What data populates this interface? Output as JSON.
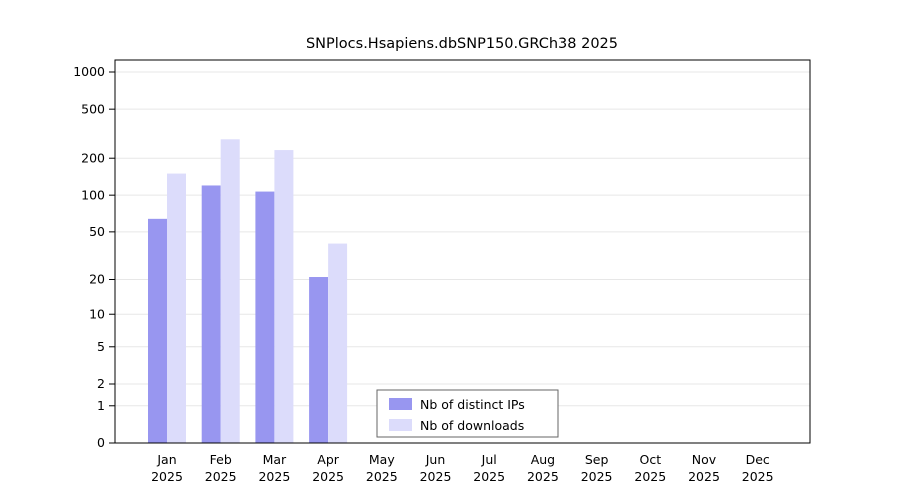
{
  "chart_data": {
    "type": "bar",
    "title": "SNPlocs.Hsapiens.dbSNP150.GRCh38 2025",
    "categories": [
      "Jan 2025",
      "Feb 2025",
      "Mar 2025",
      "Apr 2025",
      "May 2025",
      "Jun 2025",
      "Jul 2025",
      "Aug 2025",
      "Sep 2025",
      "Oct 2025",
      "Nov 2025",
      "Dec 2025"
    ],
    "series": [
      {
        "name": "Nb of distinct IPs",
        "color": "#9896f0",
        "values": [
          64,
          120,
          107,
          21,
          0,
          0,
          0,
          0,
          0,
          0,
          0,
          0
        ]
      },
      {
        "name": "Nb of downloads",
        "color": "#dcdcfb",
        "values": [
          150,
          285,
          233,
          40,
          0,
          0,
          0,
          0,
          0,
          0,
          0,
          0
        ]
      }
    ],
    "yscale": "log1p",
    "yticks": [
      0,
      1,
      2,
      5,
      10,
      20,
      50,
      100,
      200,
      500,
      1000
    ],
    "ylim": [
      0,
      1000
    ],
    "xlabel": "",
    "ylabel": "",
    "grid": true,
    "legend_position": "bottom-center-inside"
  },
  "colors": {
    "grid": "#e7e7e7",
    "axis": "#000000",
    "legend_border": "#666666",
    "background": "#ffffff"
  }
}
